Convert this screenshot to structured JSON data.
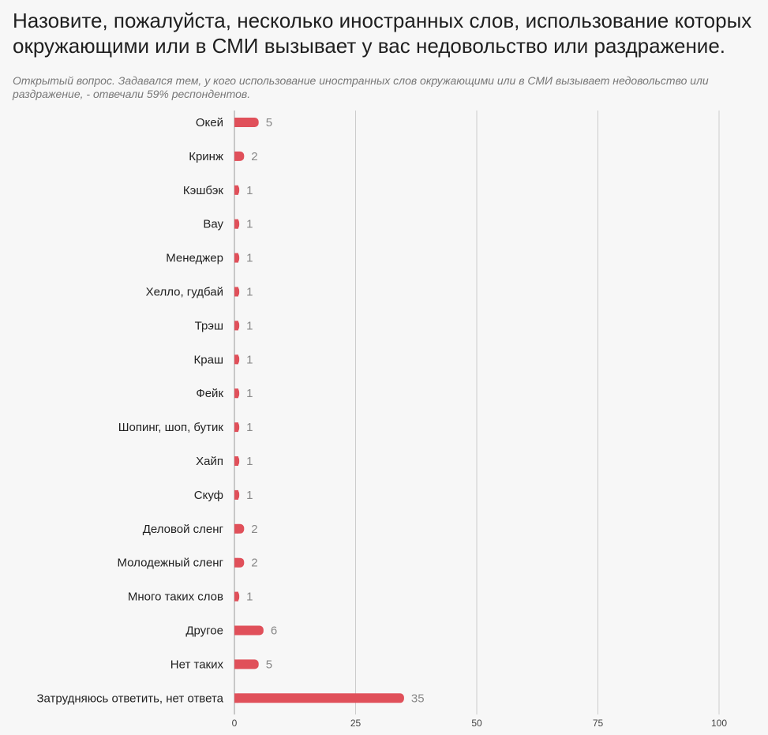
{
  "header": {
    "title": "Назовите, пожалуйста, несколько иностранных слов, использование которых окружающими или в СМИ вызывает у вас недовольство или раздражение.",
    "subtitle": "Открытый вопрос. Задавался тем, у кого использование иностранных слов окружающими или в СМИ вызывает недовольство или раздражение, - отвечали 59% респондентов."
  },
  "chart_data": {
    "type": "bar",
    "orientation": "horizontal",
    "categories": [
      "Окей",
      "Кринж",
      "Кэшбэк",
      "Вау",
      "Менеджер",
      "Хелло, гудбай",
      "Трэш",
      "Краш",
      "Фейк",
      "Шопинг, шоп, бутик",
      "Хайп",
      "Скуф",
      "Деловой сленг",
      "Молодежный сленг",
      "Много таких слов",
      "Другое",
      "Нет таких",
      "Затрудняюсь ответить, нет ответа"
    ],
    "values": [
      5,
      2,
      1,
      1,
      1,
      1,
      1,
      1,
      1,
      1,
      1,
      1,
      2,
      2,
      1,
      6,
      5,
      35
    ],
    "xlim": [
      0,
      100
    ],
    "xticks": [
      "0",
      "25",
      "50",
      "75",
      "100"
    ],
    "grid": true,
    "bar_color": "#e0505a",
    "grid_color": "#cccccc"
  }
}
